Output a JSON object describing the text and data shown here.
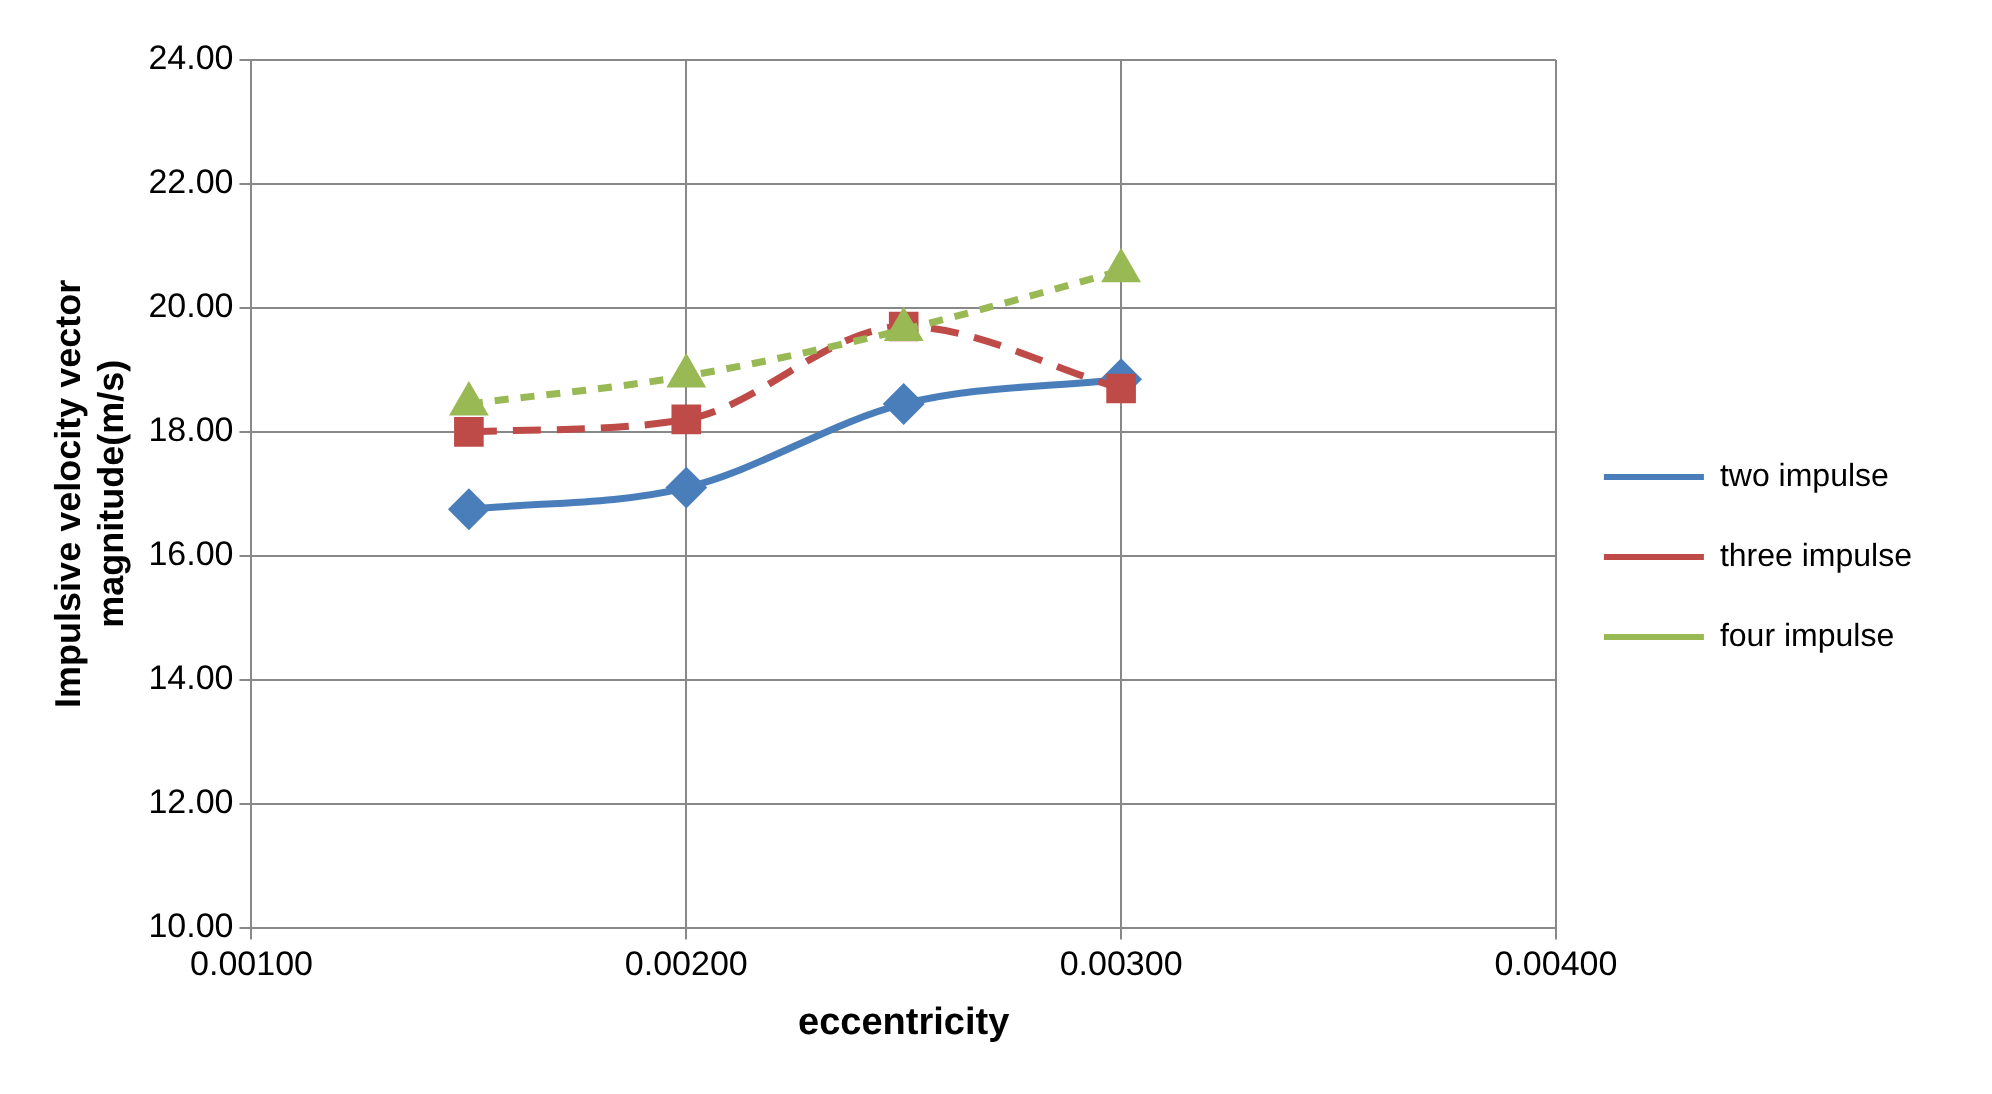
{
  "chart_data": {
    "type": "line",
    "xlabel": "eccentricity",
    "ylabel": "Impulsive velocity vector magnitude(m/s)",
    "x": [
      0.0015,
      0.002,
      0.0025,
      0.003
    ],
    "series": [
      {
        "name": "two impulse",
        "color": "#4a7ebb",
        "values": [
          16.75,
          17.1,
          18.45,
          18.85
        ],
        "marker": "diamond",
        "line_style": "solid"
      },
      {
        "name": "three impulse",
        "color": "#be4b48",
        "values": [
          18.0,
          18.2,
          19.7,
          18.7
        ],
        "marker": "square",
        "line_style": "dashed"
      },
      {
        "name": "four impulse",
        "color": "#98b954",
        "values": [
          18.45,
          18.9,
          19.65,
          20.6
        ],
        "marker": "triangle",
        "line_style": "dotted"
      }
    ],
    "xlim": [
      0.001,
      0.004
    ],
    "xticks": [
      {
        "value": 0.001,
        "label": "0.00100"
      },
      {
        "value": 0.002,
        "label": "0.00200"
      },
      {
        "value": 0.003,
        "label": "0.00300"
      },
      {
        "value": 0.004,
        "label": "0.00400"
      }
    ],
    "ylim": [
      10,
      24
    ],
    "yticks": [
      {
        "value": 10,
        "label": "10.00"
      },
      {
        "value": 12,
        "label": "12.00"
      },
      {
        "value": 14,
        "label": "14.00"
      },
      {
        "value": 16,
        "label": "16.00"
      },
      {
        "value": 18,
        "label": "18.00"
      },
      {
        "value": 20,
        "label": "20.00"
      },
      {
        "value": 22,
        "label": "22.00"
      },
      {
        "value": 24,
        "label": "24.00"
      }
    ],
    "grid": true,
    "legend": "right"
  }
}
